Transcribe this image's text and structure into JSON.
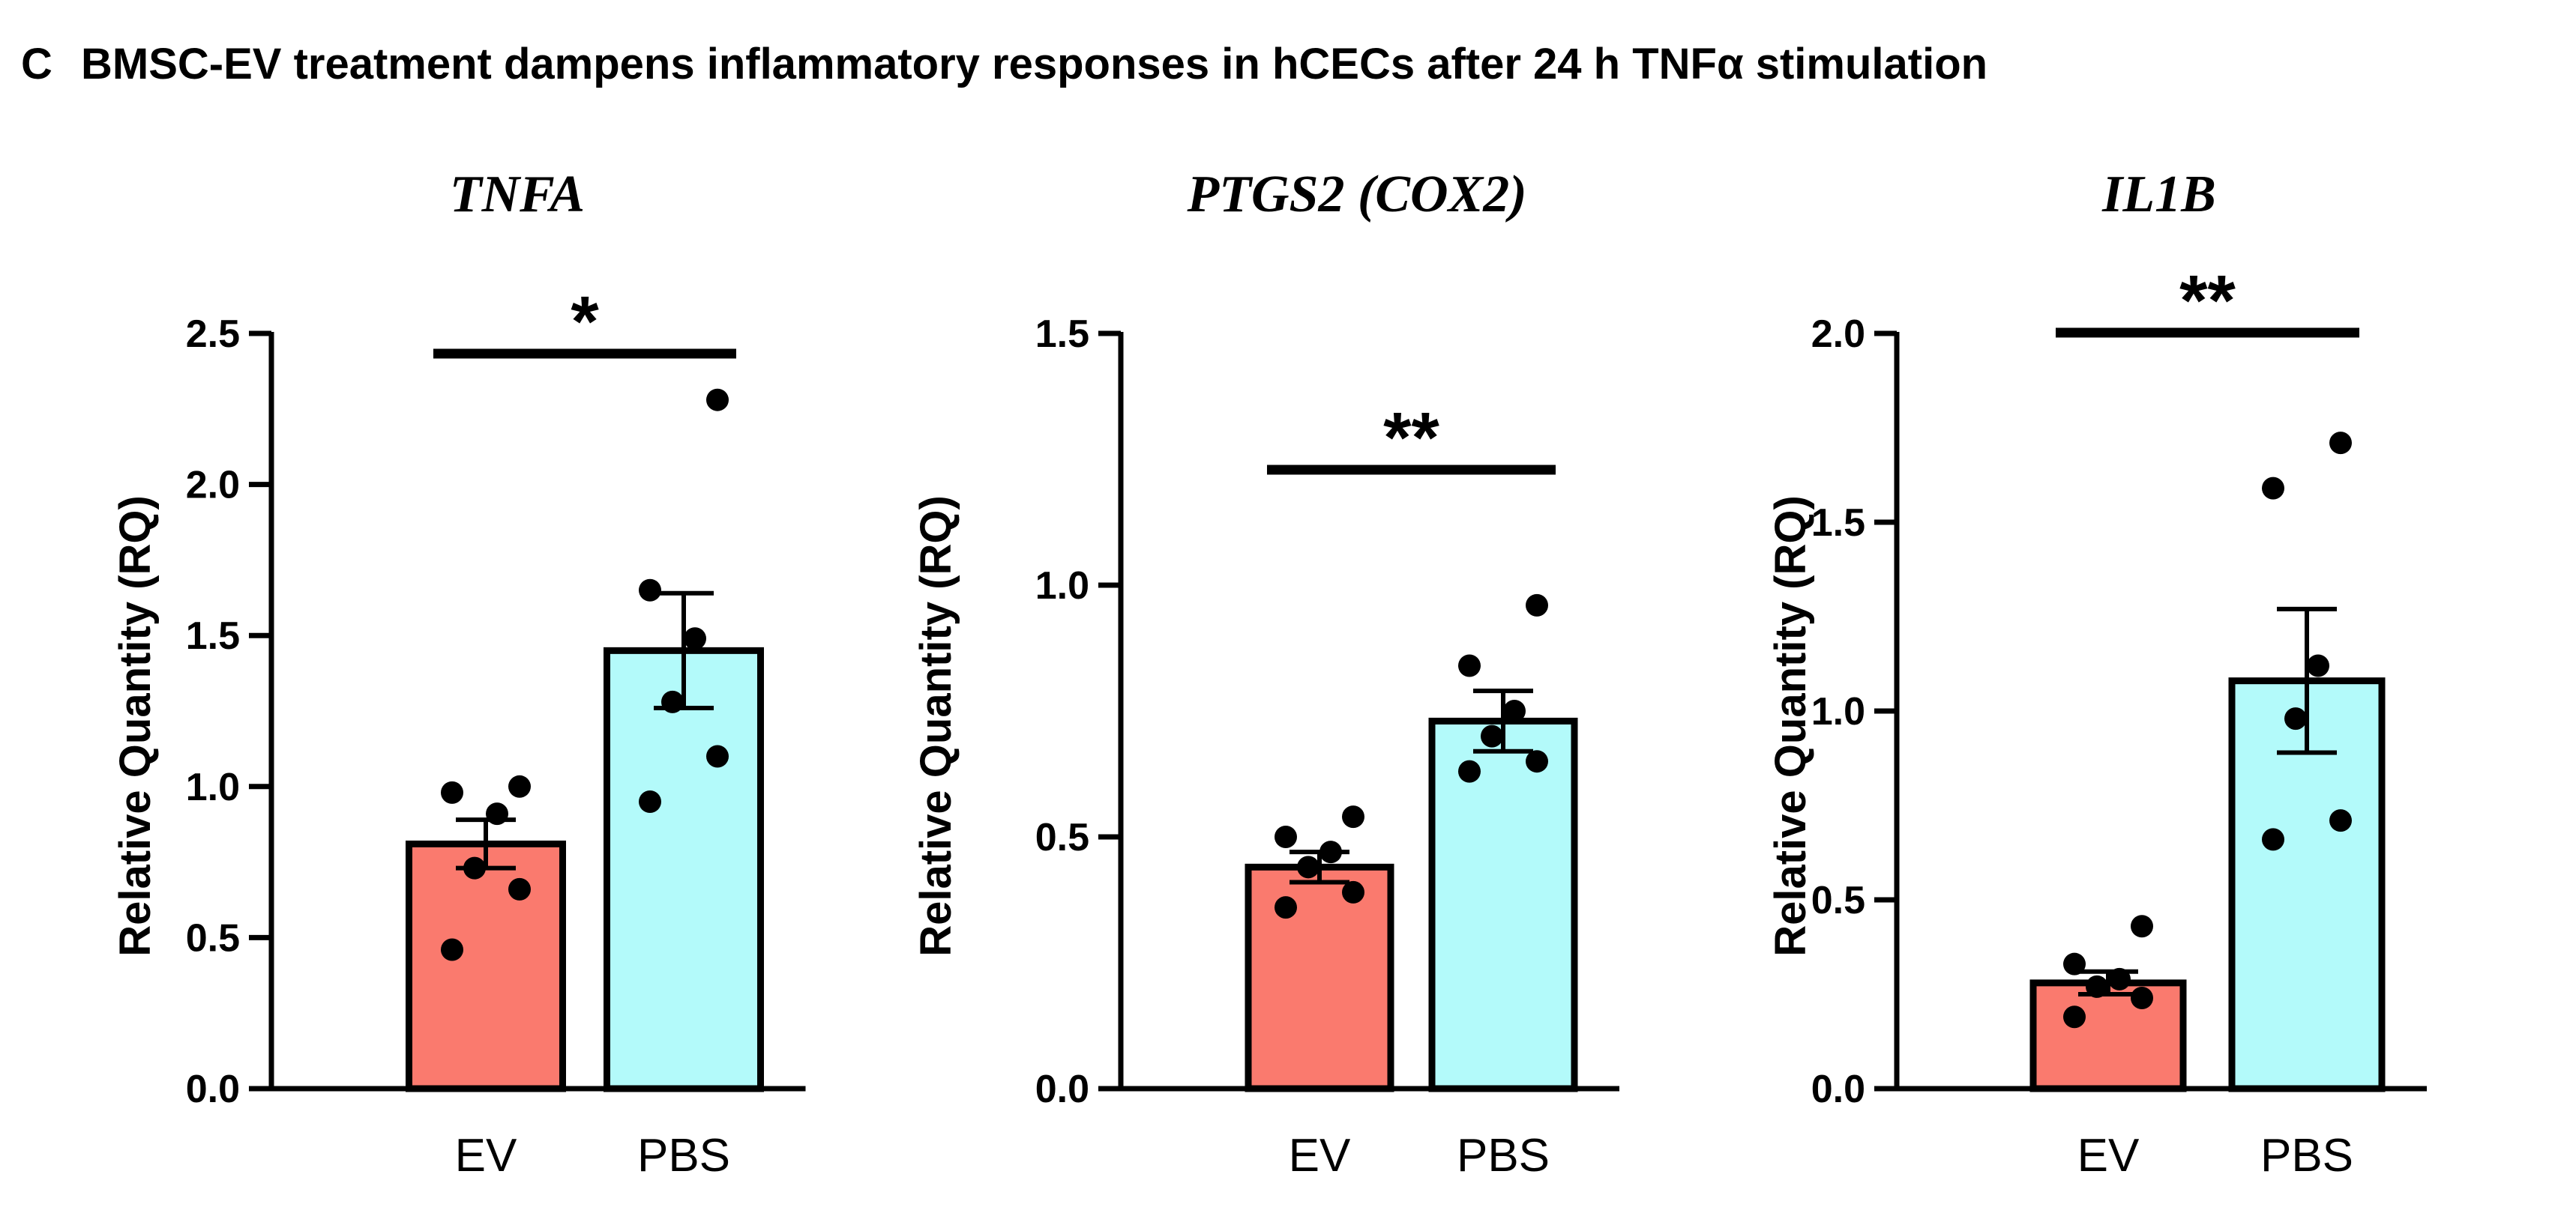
{
  "figure": {
    "panel_letter": "C",
    "title": "BMSC-EV treatment dampens inflammatory responses in hCECs after 24 h TNFα stimulation"
  },
  "colors": {
    "ev_bar": "#fa7a6e",
    "pbs_bar": "#b3fafa",
    "stroke": "#000000"
  },
  "chart_data": [
    {
      "type": "bar",
      "title": "TNFA",
      "xlabel": "",
      "ylabel": "Relative Quantity (RQ)",
      "categories": [
        "EV",
        "PBS"
      ],
      "values": [
        0.81,
        1.45
      ],
      "sem": [
        0.08,
        0.19
      ],
      "points": [
        [
          0.46,
          0.66,
          0.73,
          0.91,
          0.98,
          1.0
        ],
        [
          0.95,
          1.1,
          1.28,
          1.49,
          1.65,
          2.28
        ]
      ],
      "ylim": [
        0,
        2.5
      ],
      "yticks": [
        0.0,
        0.5,
        1.0,
        1.5,
        2.0,
        2.5
      ],
      "ytick_labels": [
        "0.0",
        "0.5",
        "1.0",
        "1.5",
        "2.0",
        "2.5"
      ],
      "significance": "*"
    },
    {
      "type": "bar",
      "title": "PTGS2 (COX2)",
      "xlabel": "",
      "ylabel": "Relative Quantity (RQ)",
      "categories": [
        "EV",
        "PBS"
      ],
      "values": [
        0.44,
        0.73
      ],
      "sem": [
        0.03,
        0.06
      ],
      "points": [
        [
          0.36,
          0.39,
          0.44,
          0.47,
          0.5,
          0.54
        ],
        [
          0.63,
          0.65,
          0.7,
          0.75,
          0.84,
          0.96
        ]
      ],
      "ylim": [
        0,
        1.5
      ],
      "yticks": [
        0.0,
        0.5,
        1.0,
        1.5
      ],
      "ytick_labels": [
        "0.0",
        "0.5",
        "1.0",
        "1.5"
      ],
      "significance": "**"
    },
    {
      "type": "bar",
      "title": "IL1B",
      "xlabel": "",
      "ylabel": "Relative Quantity (RQ)",
      "categories": [
        "EV",
        "PBS"
      ],
      "values": [
        0.28,
        1.08
      ],
      "sem": [
        0.03,
        0.19
      ],
      "points": [
        [
          0.19,
          0.24,
          0.27,
          0.29,
          0.33,
          0.43
        ],
        [
          0.66,
          0.71,
          0.98,
          1.12,
          1.59,
          1.71
        ]
      ],
      "ylim": [
        0,
        2.0
      ],
      "yticks": [
        0.0,
        0.5,
        1.0,
        1.5,
        2.0
      ],
      "ytick_labels": [
        "0.0",
        "0.5",
        "1.0",
        "1.5",
        "2.0"
      ],
      "significance": "**"
    }
  ]
}
